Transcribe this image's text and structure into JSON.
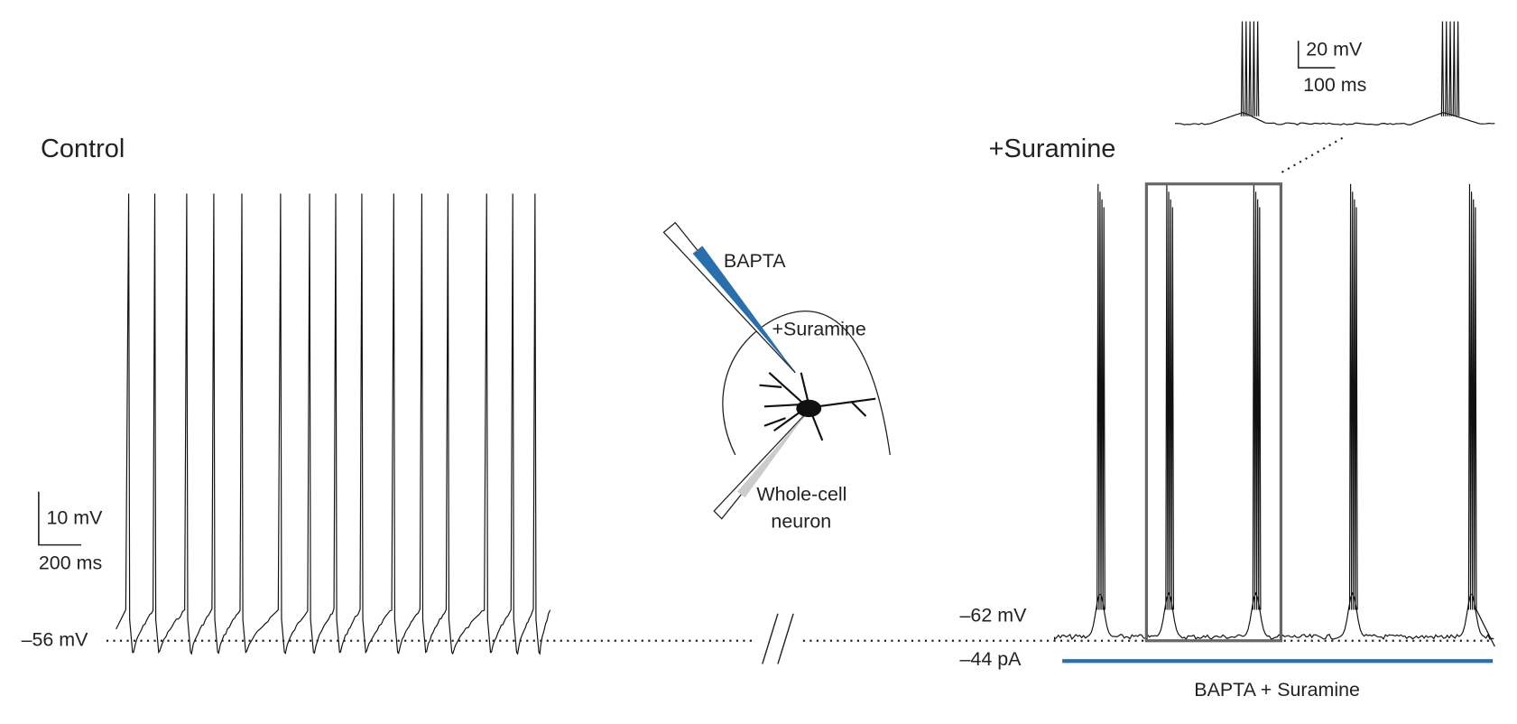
{
  "control": {
    "title": "Control",
    "scale_voltage": "10 mV",
    "scale_time": "200 ms",
    "baseline": "–56 mV"
  },
  "treatment": {
    "title": "+Suramine",
    "baseline": "–62 mV",
    "holding_current": "–44 pA",
    "bar_label": "BAPTA + Suramine"
  },
  "inset": {
    "scale_voltage": "20 mV",
    "scale_time": "100 ms"
  },
  "schematic": {
    "pipette_label": "BAPTA",
    "bath_label": "+Suramine",
    "cell_label_1": "Whole-cell",
    "cell_label_2": "neuron"
  }
}
